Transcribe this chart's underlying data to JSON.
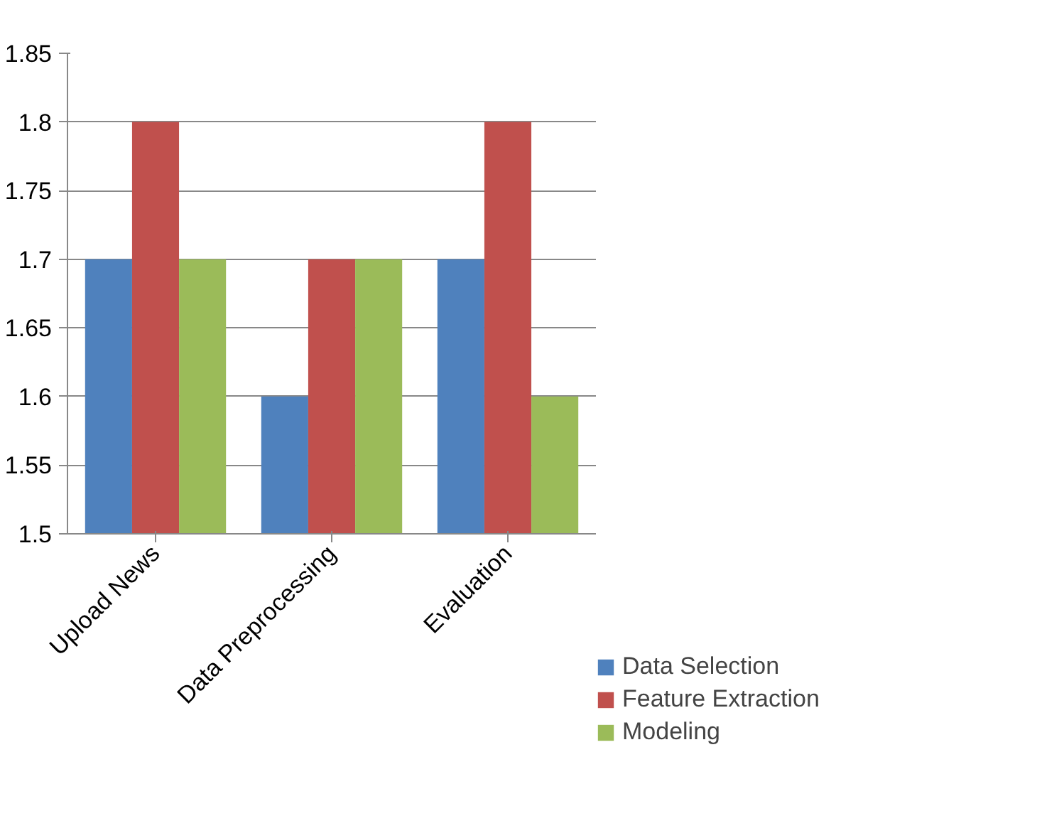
{
  "chart_data": {
    "type": "bar",
    "categories": [
      "Upload News",
      "Data Preprocessing",
      "Evaluation"
    ],
    "series": [
      {
        "name": "Data Selection",
        "color": "#4f81bd",
        "values": [
          1.7,
          1.6,
          1.7
        ]
      },
      {
        "name": "Feature Extraction",
        "color": "#c0504d",
        "values": [
          1.8,
          1.7,
          1.8
        ]
      },
      {
        "name": "Modeling",
        "color": "#9bbb59",
        "values": [
          1.7,
          1.7,
          1.6
        ]
      }
    ],
    "ylim": [
      1.5,
      1.85
    ],
    "yticks": [
      1.5,
      1.55,
      1.6,
      1.65,
      1.7,
      1.75,
      1.8,
      1.85
    ],
    "grid": "y",
    "legend": "right"
  }
}
